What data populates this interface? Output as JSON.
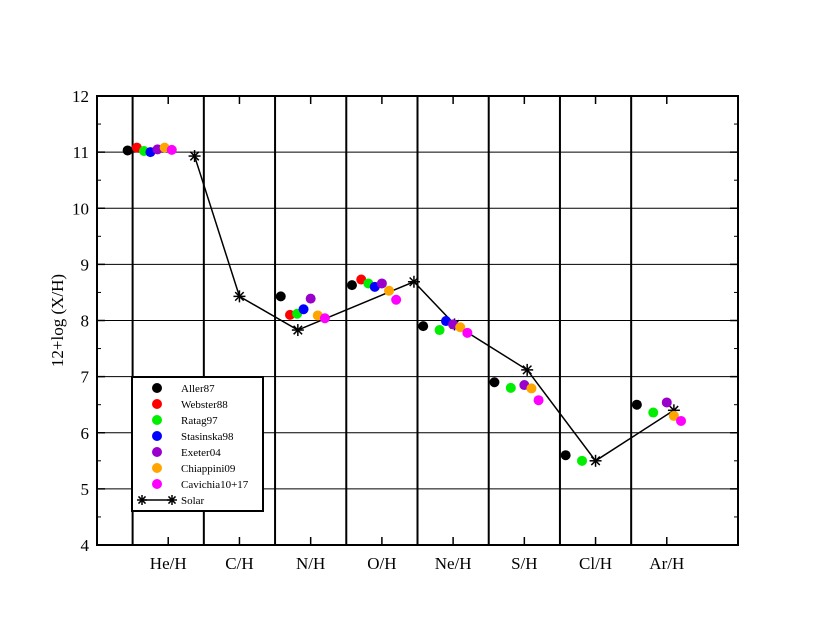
{
  "chart_data": {
    "type": "scatter",
    "title": "",
    "xlabel": "",
    "ylabel": "12+log (X/H)",
    "ylim": [
      4,
      12
    ],
    "yticks": [
      4,
      5,
      6,
      7,
      8,
      9,
      10,
      11,
      12
    ],
    "grid": true,
    "legend_position": "bottom-left",
    "categories": [
      "He/H",
      "C/H",
      "N/H",
      "O/H",
      "Ne/H",
      "S/H",
      "Cl/H",
      "Ar/H"
    ],
    "series": [
      {
        "name": "Aller87",
        "color": "#000000",
        "points": [
          {
            "category": "He/H",
            "y": 11.03
          },
          {
            "category": "N/H",
            "y": 8.43
          },
          {
            "category": "O/H",
            "y": 8.63
          },
          {
            "category": "Ne/H",
            "y": 7.9
          },
          {
            "category": "S/H",
            "y": 6.9
          },
          {
            "category": "Cl/H",
            "y": 5.6
          },
          {
            "category": "Ar/H",
            "y": 6.5
          }
        ]
      },
      {
        "name": "Webster88",
        "color": "#ff0000",
        "points": [
          {
            "category": "He/H",
            "y": 11.08
          },
          {
            "category": "N/H",
            "y": 8.1
          },
          {
            "category": "O/H",
            "y": 8.73
          }
        ]
      },
      {
        "name": "Ratag97",
        "color": "#00ee00",
        "points": [
          {
            "category": "He/H",
            "y": 11.02
          },
          {
            "category": "N/H",
            "y": 8.12
          },
          {
            "category": "O/H",
            "y": 8.66
          },
          {
            "category": "Ne/H",
            "y": 7.83
          },
          {
            "category": "S/H",
            "y": 6.8
          },
          {
            "category": "Cl/H",
            "y": 5.5
          },
          {
            "category": "Ar/H",
            "y": 6.36
          }
        ]
      },
      {
        "name": "Stasinska98",
        "color": "#0000ff",
        "points": [
          {
            "category": "He/H",
            "y": 11.0
          },
          {
            "category": "N/H",
            "y": 8.2
          },
          {
            "category": "O/H",
            "y": 8.6
          },
          {
            "category": "Ne/H",
            "y": 7.99
          }
        ]
      },
      {
        "name": "Exeter04",
        "color": "#9a00cc",
        "points": [
          {
            "category": "He/H",
            "y": 11.05
          },
          {
            "category": "N/H",
            "y": 8.39
          },
          {
            "category": "O/H",
            "y": 8.66
          },
          {
            "category": "Ne/H",
            "y": 7.93
          },
          {
            "category": "S/H",
            "y": 6.85
          },
          {
            "category": "Ar/H",
            "y": 6.54
          }
        ]
      },
      {
        "name": "Chiappini09",
        "color": "#ffa500",
        "points": [
          {
            "category": "He/H",
            "y": 11.08
          },
          {
            "category": "N/H",
            "y": 8.09
          },
          {
            "category": "O/H",
            "y": 8.53
          },
          {
            "category": "Ne/H",
            "y": 7.88
          },
          {
            "category": "S/H",
            "y": 6.79
          },
          {
            "category": "Ar/H",
            "y": 6.3
          }
        ]
      },
      {
        "name": "Cavichia10+17",
        "color": "#ff00ff",
        "points": [
          {
            "category": "He/H",
            "y": 11.04
          },
          {
            "category": "N/H",
            "y": 8.04
          },
          {
            "category": "O/H",
            "y": 8.37
          },
          {
            "category": "Ne/H",
            "y": 7.78
          },
          {
            "category": "S/H",
            "y": 6.58
          },
          {
            "category": "Ar/H",
            "y": 6.21
          }
        ]
      }
    ],
    "solar": {
      "name": "Solar",
      "color": "#000000",
      "marker": "asterisk",
      "values": [
        10.93,
        8.43,
        7.83,
        8.69,
        7.93,
        7.12,
        5.5,
        6.4
      ]
    }
  }
}
